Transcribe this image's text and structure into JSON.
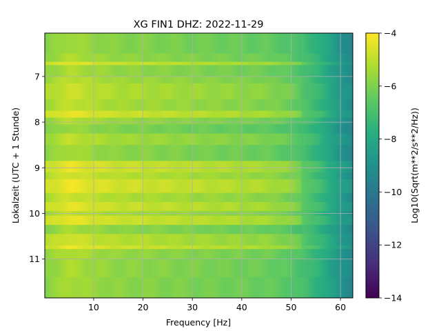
{
  "chart_data": {
    "type": "heatmap",
    "title": "XG FIN1  DHZ: 2022-11-29",
    "xlabel": "Frequency [Hz]",
    "ylabel": "Lokalzeit (UTC + 1 Stunde)",
    "xlim": [
      0.1,
      62.5
    ],
    "ylim": [
      11.85,
      6.05
    ],
    "y_axis_inverted": true,
    "grid": true,
    "x_ticks": [
      10,
      20,
      30,
      40,
      50,
      60
    ],
    "x_tick_labels": [
      "10",
      "20",
      "30",
      "40",
      "50",
      "60"
    ],
    "y_ticks": [
      7,
      8,
      9,
      10,
      11
    ],
    "y_tick_labels": [
      "7",
      "8",
      "9",
      "10",
      "11"
    ],
    "colorbar": {
      "label": "Log10(Sqrt(m**2/s**2/Hz))",
      "colormap": "viridis",
      "vmin": -14,
      "vmax": -4,
      "ticks": [
        -14,
        -12,
        -10,
        -8,
        -6,
        -4
      ],
      "tick_labels": [
        "−14",
        "−12",
        "−10",
        "−8",
        "−6",
        "−4"
      ]
    },
    "frequency_profile": {
      "x": [
        0.1,
        5,
        10,
        15,
        20,
        25,
        30,
        35,
        40,
        45,
        50,
        53,
        56,
        58,
        60,
        62.5
      ],
      "values": [
        -5.7,
        -5.1,
        -5.4,
        -5.6,
        -5.65,
        -5.75,
        -5.85,
        -5.95,
        -6.05,
        -6.15,
        -6.5,
        -7.0,
        -7.6,
        -8.2,
        -8.8,
        -9.3
      ]
    },
    "time_bands": [
      {
        "y_start": 6.05,
        "y_end": 6.5,
        "offset": -0.3
      },
      {
        "y_start": 6.5,
        "y_end": 6.68,
        "offset": -0.1
      },
      {
        "y_start": 6.68,
        "y_end": 6.75,
        "offset": 0.75
      },
      {
        "y_start": 6.75,
        "y_end": 7.0,
        "offset": -0.1
      },
      {
        "y_start": 7.0,
        "y_end": 7.15,
        "offset": 0.1
      },
      {
        "y_start": 7.15,
        "y_end": 7.5,
        "offset": 0.35
      },
      {
        "y_start": 7.5,
        "y_end": 7.75,
        "offset": 0.2
      },
      {
        "y_start": 7.75,
        "y_end": 7.9,
        "offset": 0.8
      },
      {
        "y_start": 7.9,
        "y_end": 8.05,
        "offset": 0.0
      },
      {
        "y_start": 8.05,
        "y_end": 8.25,
        "offset": -0.4
      },
      {
        "y_start": 8.25,
        "y_end": 8.5,
        "offset": 0.15
      },
      {
        "y_start": 8.5,
        "y_end": 8.85,
        "offset": -0.2
      },
      {
        "y_start": 8.85,
        "y_end": 9.1,
        "offset": 0.8
      },
      {
        "y_start": 9.1,
        "y_end": 9.25,
        "offset": 0.45
      },
      {
        "y_start": 9.25,
        "y_end": 9.55,
        "offset": 0.9
      },
      {
        "y_start": 9.55,
        "y_end": 9.75,
        "offset": 0.35
      },
      {
        "y_start": 9.75,
        "y_end": 9.95,
        "offset": 0.75
      },
      {
        "y_start": 9.95,
        "y_end": 10.05,
        "offset": 0.2
      },
      {
        "y_start": 10.05,
        "y_end": 10.25,
        "offset": 0.8
      },
      {
        "y_start": 10.25,
        "y_end": 10.45,
        "offset": -0.2
      },
      {
        "y_start": 10.45,
        "y_end": 10.7,
        "offset": 0.45
      },
      {
        "y_start": 10.7,
        "y_end": 10.78,
        "offset": 0.85
      },
      {
        "y_start": 10.78,
        "y_end": 11.0,
        "offset": -0.05
      },
      {
        "y_start": 11.0,
        "y_end": 11.4,
        "offset": -0.15
      },
      {
        "y_start": 11.4,
        "y_end": 11.85,
        "offset": -0.2
      }
    ]
  }
}
